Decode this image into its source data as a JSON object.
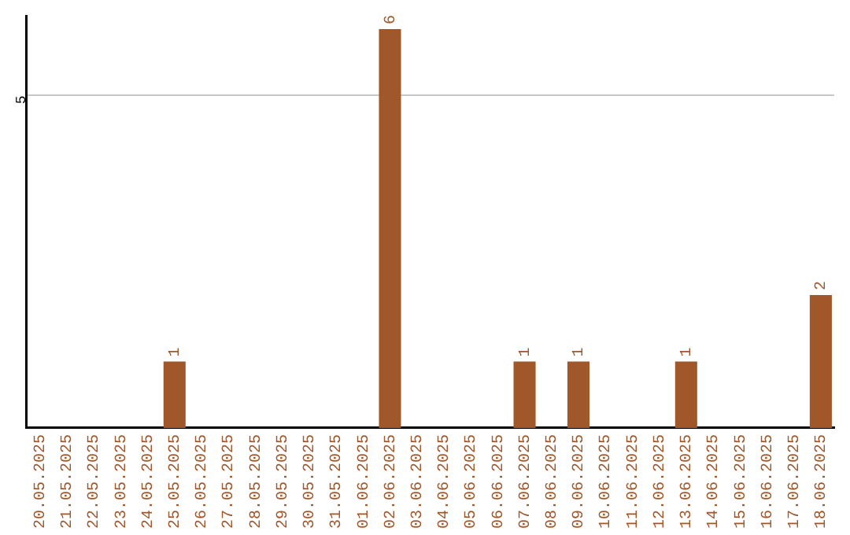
{
  "chart_data": {
    "type": "bar",
    "categories": [
      "20.05.2025",
      "21.05.2025",
      "22.05.2025",
      "23.05.2025",
      "24.05.2025",
      "25.05.2025",
      "26.05.2025",
      "27.05.2025",
      "28.05.2025",
      "29.05.2025",
      "30.05.2025",
      "31.05.2025",
      "01.06.2025",
      "02.06.2025",
      "03.06.2025",
      "04.06.2025",
      "05.06.2025",
      "06.06.2025",
      "07.06.2025",
      "08.06.2025",
      "09.06.2025",
      "10.06.2025",
      "11.06.2025",
      "12.06.2025",
      "13.06.2025",
      "14.06.2025",
      "15.06.2025",
      "16.06.2025",
      "17.06.2025",
      "18.06.2025"
    ],
    "values": [
      0,
      0,
      0,
      0,
      0,
      1,
      0,
      0,
      0,
      0,
      0,
      0,
      0,
      6,
      0,
      0,
      0,
      0,
      1,
      0,
      1,
      0,
      0,
      0,
      1,
      0,
      0,
      0,
      0,
      2
    ],
    "color": "#a0572a",
    "value_labels": [
      null,
      null,
      null,
      null,
      null,
      "1",
      null,
      null,
      null,
      null,
      null,
      null,
      null,
      "6",
      null,
      null,
      null,
      null,
      "1",
      null,
      "1",
      null,
      null,
      null,
      "1",
      null,
      null,
      null,
      null,
      "2"
    ],
    "ylim": [
      0,
      6.2
    ],
    "yticks": [
      5
    ],
    "grid": "y",
    "legend": false
  }
}
